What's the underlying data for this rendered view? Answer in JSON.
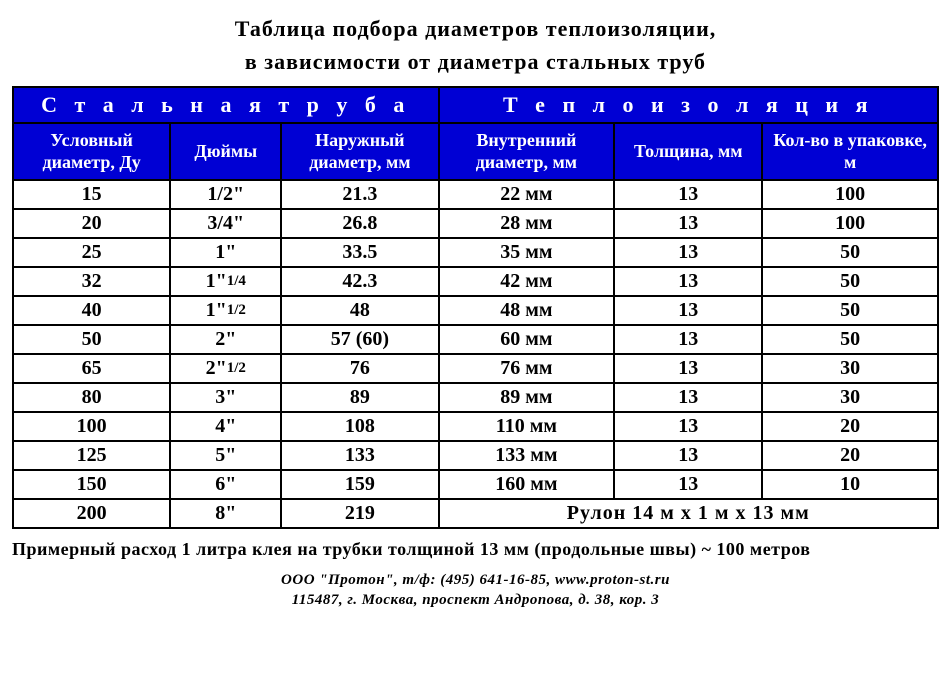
{
  "title_line1": "Таблица  подбора  диаметров  теплоизоляции,",
  "title_line2": "в  зависимости  от  диаметра  стальных труб",
  "header_group1": "С т а л ь н а я    т р у б а",
  "header_group2": "Т е п л о и з о л я ц и я",
  "subheaders": {
    "c1": "Условный диаметр,  Ду",
    "c2": "Дюймы",
    "c3": "Наружный диаметр,  мм",
    "c4": "Внутренний диаметр,  мм",
    "c5": "Толщина, мм",
    "c6": "Кол-во  в упаковке,  м"
  },
  "rows": [
    {
      "c1": "15",
      "c2": "1/2\"",
      "c3": "21.3",
      "c4": "22 мм",
      "c5": "13",
      "c6": "100"
    },
    {
      "c1": "20",
      "c2": "3/4\"",
      "c3": "26.8",
      "c4": "28 мм",
      "c5": "13",
      "c6": "100"
    },
    {
      "c1": "25",
      "c2": "1\"",
      "c3": "33.5",
      "c4": "35 мм",
      "c5": "13",
      "c6": "50"
    },
    {
      "c1": "32",
      "c2_main": "1\"",
      "c2_frac": "1/4",
      "c3": "42.3",
      "c4": "42 мм",
      "c5": "13",
      "c6": "50"
    },
    {
      "c1": "40",
      "c2_main": "1\"",
      "c2_frac": "1/2",
      "c3": "48",
      "c4": "48 мм",
      "c5": "13",
      "c6": "50"
    },
    {
      "c1": "50",
      "c2": "2\"",
      "c3": "57 (60)",
      "c4": "60 мм",
      "c5": "13",
      "c6": "50"
    },
    {
      "c1": "65",
      "c2_main": "2\"",
      "c2_frac": "1/2",
      "c3": "76",
      "c4": "76 мм",
      "c5": "13",
      "c6": "30"
    },
    {
      "c1": "80",
      "c2": "3\"",
      "c3": "89",
      "c4": "89 мм",
      "c5": "13",
      "c6": "30"
    },
    {
      "c1": "100",
      "c2": "4\"",
      "c3": "108",
      "c4": "110 мм",
      "c5": "13",
      "c6": "20"
    },
    {
      "c1": "125",
      "c2": "5\"",
      "c3": "133",
      "c4": "133 мм",
      "c5": "13",
      "c6": "20"
    },
    {
      "c1": "150",
      "c2": "6\"",
      "c3": "159",
      "c4": "160 мм",
      "c5": "13",
      "c6": "10"
    }
  ],
  "last_row": {
    "c1": "200",
    "c2": "8\"",
    "c3": "219",
    "merged": "Рулон  14 м х 1 м х 13 мм"
  },
  "note": "Примерный расход 1 литра клея на трубки толщиной 13 мм (продольные швы) ~ 100 метров",
  "footer_line1": "ООО \"Протон\",  т/ф: (495) 641-16-85,  www.proton-st.ru",
  "footer_line2": "115487,  г. Москва,  проспект  Андропова,  д. 38,  кор. 3",
  "colors": {
    "header_bg": "#0000d4",
    "header_fg": "#ffffff",
    "border": "#000000",
    "background": "#ffffff",
    "text": "#000000"
  }
}
